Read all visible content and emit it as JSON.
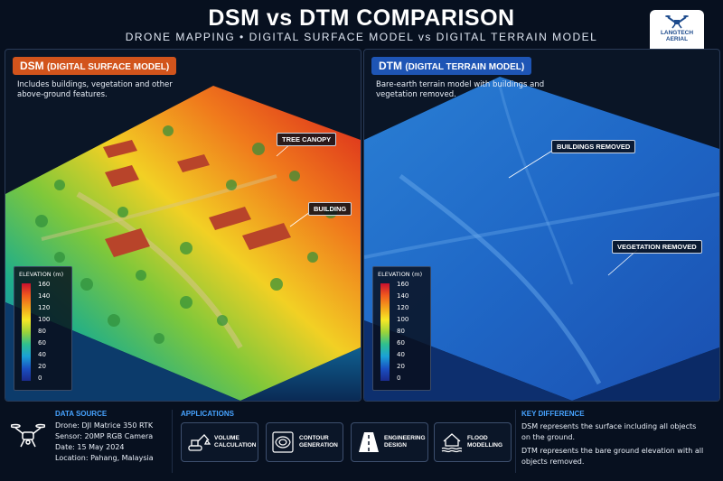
{
  "header": {
    "title": "DSM vs DTM COMPARISON",
    "subtitle": "DRONE MAPPING • DIGITAL SURFACE MODEL vs DIGITAL TERRAIN MODEL"
  },
  "logo": {
    "line1": "LANGTECH",
    "line2": "AERIAL",
    "icon": "drone-icon"
  },
  "dsm_panel": {
    "tag": "DSM",
    "tag_full": "(DIGITAL SURFACE MODEL)",
    "description": "Includes buildings, vegetation and other above-ground features.",
    "callouts": [
      "TREE CANOPY",
      "BUILDING"
    ]
  },
  "dtm_panel": {
    "tag": "DTM",
    "tag_full": "(DIGITAL TERRAIN MODEL)",
    "description": "Bare-earth terrain model with buildings and vegetation removed.",
    "callouts": [
      "BUILDINGS REMOVED",
      "VEGETATION REMOVED"
    ]
  },
  "legend": {
    "title": "ELEVATION (m)",
    "ticks": [
      "160",
      "140",
      "120",
      "100",
      "80",
      "60",
      "40",
      "20",
      "0"
    ]
  },
  "data_source": {
    "title": "DATA SOURCE",
    "lines": [
      "Drone: DJI Matrice 350 RTK",
      "Sensor: 20MP RGB Camera",
      "Date: 15 May 2024",
      "Location: Pahang, Malaysia"
    ]
  },
  "applications": {
    "title": "APPLICATIONS",
    "items": [
      {
        "label": "VOLUME CALCULATION",
        "icon": "excavator-icon"
      },
      {
        "label": "CONTOUR GENERATION",
        "icon": "contour-icon"
      },
      {
        "label": "ENGINEERING DESIGN",
        "icon": "road-icon"
      },
      {
        "label": "FLOOD MODELLING",
        "icon": "flood-house-icon"
      }
    ]
  },
  "key_difference": {
    "title": "KEY DIFFERENCE",
    "line1": "DSM represents the surface including all objects on the ground.",
    "line2": "DTM represents the bare ground elevation with all objects removed."
  },
  "colors": {
    "dsm_accent": "#d2541c",
    "dtm_accent": "#1e55b5",
    "section_title": "#47a3ff"
  }
}
